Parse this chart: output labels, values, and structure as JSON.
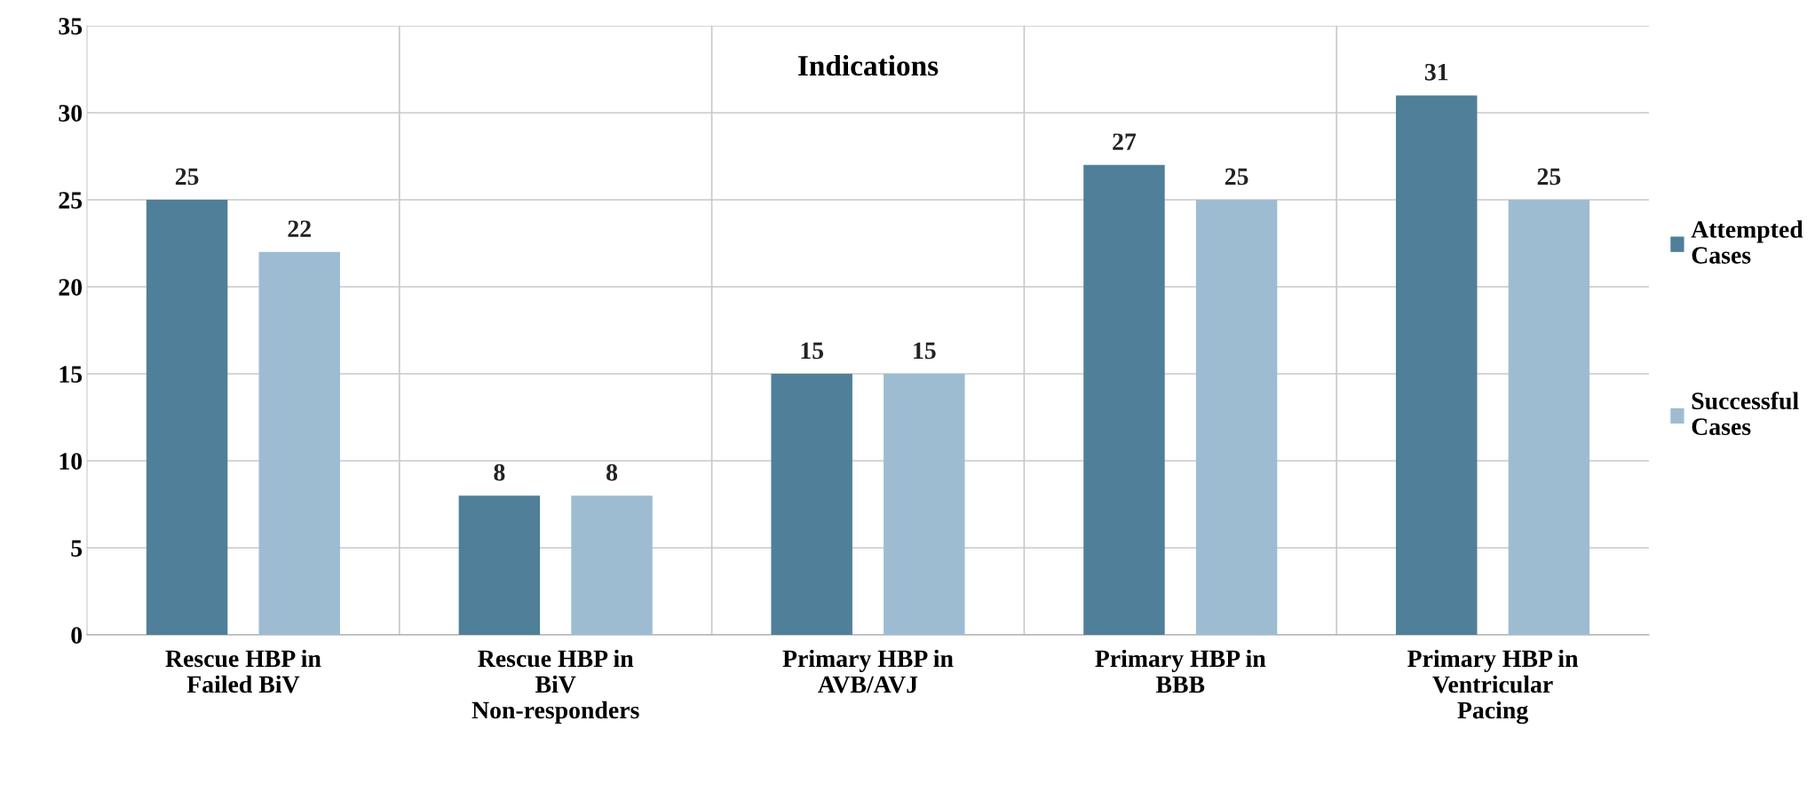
{
  "chart_data": {
    "type": "bar",
    "title": "Indications",
    "categories": [
      "Rescue HBP in Failed BiV",
      "Rescue HBP in BiV Non-responders",
      "Primary HBP in AVB/AVJ",
      "Primary HBP in BBB",
      "Primary HBP in Ventricular Pacing"
    ],
    "series": [
      {
        "name": "Attempted Cases",
        "color": "#4f7f99",
        "values": [
          25,
          8,
          15,
          27,
          31
        ]
      },
      {
        "name": "Successful Cases",
        "color": "#9dbcd2",
        "values": [
          22,
          8,
          15,
          25,
          25
        ]
      }
    ],
    "ylim": [
      0,
      35
    ],
    "yticks": [
      0,
      5,
      10,
      15,
      20,
      25,
      30,
      35
    ],
    "grid": true,
    "legend": "right",
    "data_labels": true
  }
}
